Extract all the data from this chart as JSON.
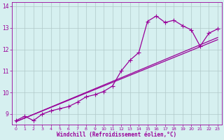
{
  "xlabel": "Windchill (Refroidissement éolien,°C)",
  "bg_color": "#d6f0f0",
  "line_color": "#990099",
  "grid_color": "#b0c8c8",
  "xlim": [
    -0.5,
    23.5
  ],
  "ylim": [
    8.5,
    14.2
  ],
  "yticks": [
    9,
    10,
    11,
    12,
    13,
    14
  ],
  "xticks": [
    0,
    1,
    2,
    3,
    4,
    5,
    6,
    7,
    8,
    9,
    10,
    11,
    12,
    13,
    14,
    15,
    16,
    17,
    18,
    19,
    20,
    21,
    22,
    23
  ],
  "curve_x": [
    0,
    1,
    2,
    3,
    4,
    5,
    6,
    7,
    8,
    9,
    10,
    11,
    12,
    13,
    14,
    15,
    16,
    17,
    18,
    19,
    20,
    21,
    22,
    23
  ],
  "curve_y": [
    8.7,
    8.9,
    8.7,
    9.0,
    9.15,
    9.25,
    9.35,
    9.55,
    9.8,
    9.9,
    10.05,
    10.3,
    11.0,
    11.5,
    11.85,
    13.3,
    13.55,
    13.25,
    13.35,
    13.1,
    12.9,
    12.15,
    12.75,
    12.95
  ],
  "line2_x": [
    0,
    23
  ],
  "line2_y": [
    8.65,
    12.45
  ],
  "line3_x": [
    0,
    23
  ],
  "line3_y": [
    8.65,
    12.55
  ],
  "marker_size": 2.5,
  "linewidth": 0.9
}
